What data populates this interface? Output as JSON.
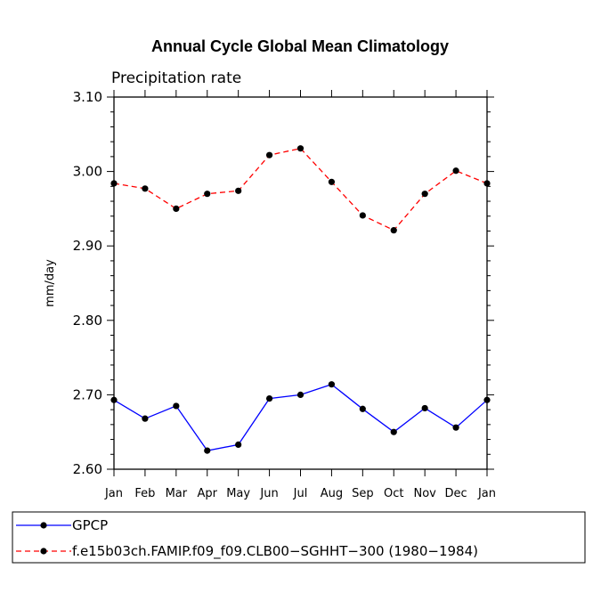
{
  "chart_data": {
    "type": "line",
    "title": "Annual Cycle Global Mean Climatology",
    "subtitle": "Precipitation rate",
    "xlabel": "",
    "ylabel": "mm/day",
    "ylim": [
      2.6,
      3.1
    ],
    "yticks": [
      "2.60",
      "2.70",
      "2.80",
      "2.90",
      "3.00",
      "3.10"
    ],
    "categories": [
      "Jan",
      "Feb",
      "Mar",
      "Apr",
      "May",
      "Jun",
      "Jul",
      "Aug",
      "Sep",
      "Oct",
      "Nov",
      "Dec",
      "Jan"
    ],
    "series": [
      {
        "name": "GPCP",
        "color": "#0000ff",
        "style": "solid",
        "values": [
          2.693,
          2.668,
          2.685,
          2.625,
          2.633,
          2.695,
          2.7,
          2.714,
          2.681,
          2.65,
          2.682,
          2.656,
          2.693
        ]
      },
      {
        "name": "f.e15b03ch.FAMIP.f09_f09.CLB00−SGHHT−300 (1980−1984)",
        "color": "#ff0000",
        "style": "dashed",
        "values": [
          2.984,
          2.977,
          2.95,
          2.97,
          2.974,
          3.022,
          3.031,
          2.986,
          2.941,
          2.921,
          2.97,
          3.001,
          2.984
        ]
      }
    ],
    "grid": false,
    "legend": "bottom-left"
  }
}
